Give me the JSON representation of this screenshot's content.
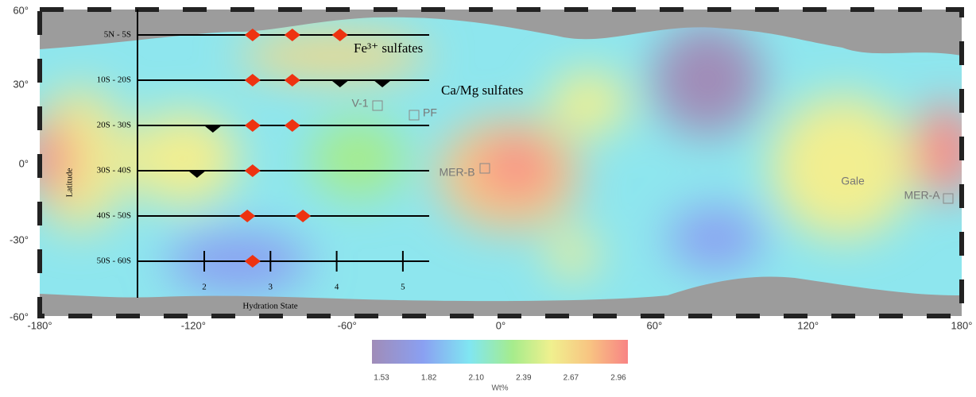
{
  "map": {
    "lat_labels": [
      "60°",
      "30°",
      "0°",
      "-30°",
      "-60°"
    ],
    "lon_labels": [
      "-180°",
      "-120°",
      "-60°",
      "0°",
      "60°",
      "120°",
      "180°"
    ],
    "sites": [
      {
        "label": "V-1"
      },
      {
        "label": "PF"
      },
      {
        "label": "MER-B"
      },
      {
        "label": "Gale"
      },
      {
        "label": "MER-A"
      }
    ]
  },
  "overlay": {
    "y_label": "Latitude",
    "x_label": "Hydration State",
    "hydration_ticks": [
      2,
      3,
      4,
      5
    ],
    "fe_label": "Fe³⁺ sulfates",
    "camg_label": "Ca/Mg sulfates",
    "rows": [
      {
        "label": "5N - 5S",
        "fe_sulfates": [
          2.73,
          3.33,
          4.05
        ],
        "camg_sulfates": []
      },
      {
        "label": "10S - 20S",
        "fe_sulfates": [
          2.73,
          3.33
        ],
        "camg_sulfates": [
          4.05,
          4.69
        ]
      },
      {
        "label": "20S - 30S",
        "fe_sulfates": [
          2.73,
          3.33
        ],
        "camg_sulfates": [
          2.13
        ]
      },
      {
        "label": "30S - 40S",
        "fe_sulfates": [
          2.73
        ],
        "camg_sulfates": [
          1.89
        ]
      },
      {
        "label": "40S - 50S",
        "fe_sulfates": [
          2.65,
          3.49
        ],
        "camg_sulfates": []
      },
      {
        "label": "50S - 60S",
        "fe_sulfates": [
          2.73
        ],
        "camg_sulfates": []
      }
    ]
  },
  "colorbar": {
    "ticks": [
      "1.53",
      "1.82",
      "2.10",
      "2.39",
      "2.67",
      "2.96"
    ],
    "unit": "Wt%"
  }
}
